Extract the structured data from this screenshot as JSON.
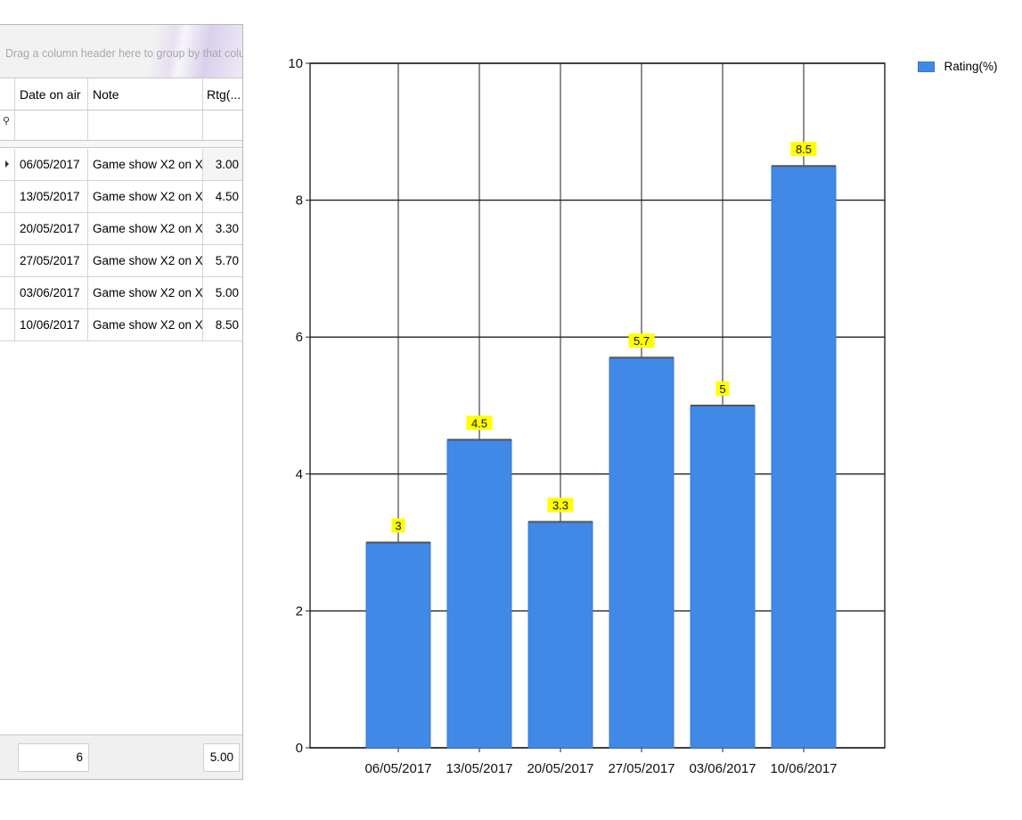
{
  "grid": {
    "group_hint": "Drag a column header here to group by that column",
    "columns": [
      "Date on air",
      "Note",
      "Rtg(..."
    ],
    "rows": [
      {
        "date": "06/05/2017",
        "note": "Game show X2 on X...",
        "rating": "3.00"
      },
      {
        "date": "13/05/2017",
        "note": "Game show X2 on X...",
        "rating": "4.50"
      },
      {
        "date": "20/05/2017",
        "note": "Game show X2 on X...",
        "rating": "3.30"
      },
      {
        "date": "27/05/2017",
        "note": "Game show X2 on X...",
        "rating": "5.70"
      },
      {
        "date": "03/06/2017",
        "note": "Game show X2 on X...",
        "rating": "5.00"
      },
      {
        "date": "10/06/2017",
        "note": "Game show X2 on X...",
        "rating": "8.50"
      }
    ],
    "footer": {
      "count": "6",
      "average": "5.00"
    }
  },
  "colors": {
    "bar": "#4189e6",
    "label_bg": "#ffff00"
  },
  "chart_data": {
    "type": "bar",
    "categories": [
      "06/05/2017",
      "13/05/2017",
      "20/05/2017",
      "27/05/2017",
      "03/06/2017",
      "10/06/2017"
    ],
    "series": [
      {
        "name": "Rating(%)",
        "values": [
          3,
          4.5,
          3.3,
          5.7,
          5,
          8.5
        ]
      }
    ],
    "data_labels": [
      "3",
      "4.5",
      "3.3",
      "5.7",
      "5",
      "8.5"
    ],
    "yticks": [
      "0",
      "2",
      "4",
      "6",
      "8",
      "10"
    ],
    "ylim": [
      0,
      10
    ],
    "grid": true,
    "legend": "top-right"
  }
}
